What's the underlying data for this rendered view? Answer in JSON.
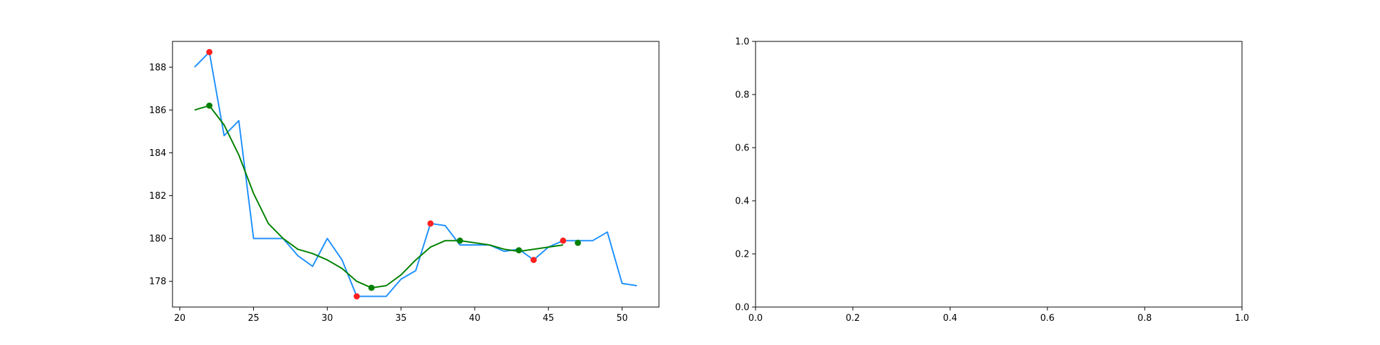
{
  "chart_data": [
    {
      "type": "line",
      "title": "",
      "xlabel": "",
      "ylabel": "",
      "xlim": [
        19.5,
        52.5
      ],
      "ylim": [
        176.8,
        189.2
      ],
      "xticks": [
        20,
        25,
        30,
        35,
        40,
        45,
        50
      ],
      "yticks": [
        178,
        180,
        182,
        184,
        186,
        188
      ],
      "x_tick_labels": [
        "20",
        "25",
        "30",
        "35",
        "40",
        "45",
        "50"
      ],
      "y_tick_labels": [
        "178",
        "180",
        "182",
        "184",
        "186",
        "188"
      ],
      "grid": false,
      "legend": "none",
      "series": [
        {
          "color": "#1e90ff",
          "x": [
            21,
            22,
            23,
            24,
            25,
            26,
            27,
            28,
            29,
            30,
            31,
            32,
            33,
            34,
            35,
            36,
            37,
            38,
            39,
            40,
            41,
            42,
            43,
            44,
            45,
            46,
            47,
            48,
            49,
            50,
            51
          ],
          "y": [
            188.0,
            188.7,
            184.8,
            185.5,
            180.0,
            180.0,
            180.0,
            179.2,
            178.7,
            180.0,
            179.0,
            177.3,
            177.3,
            177.3,
            178.1,
            178.5,
            180.7,
            180.6,
            179.7,
            179.7,
            179.7,
            179.4,
            179.5,
            179.0,
            179.6,
            179.9,
            179.9,
            179.9,
            180.3,
            177.9,
            177.8
          ]
        },
        {
          "color": "#008000",
          "x": [
            21,
            22,
            23,
            24,
            25,
            26,
            27,
            28,
            29,
            30,
            31,
            32,
            33,
            34,
            35,
            36,
            37,
            38,
            39,
            40,
            41,
            42,
            43,
            44,
            45,
            46
          ],
          "y": [
            186.0,
            186.2,
            185.3,
            183.9,
            182.1,
            180.7,
            180.0,
            179.5,
            179.3,
            179.0,
            178.6,
            178.0,
            177.7,
            177.8,
            178.3,
            179.0,
            179.6,
            179.9,
            179.9,
            179.8,
            179.7,
            179.5,
            179.4,
            179.5,
            179.6,
            179.7
          ]
        }
      ],
      "markers": [
        {
          "color": "#ff2020",
          "x": [
            22,
            32,
            37,
            44,
            46
          ],
          "y": [
            188.7,
            177.3,
            180.7,
            179.0,
            179.9
          ]
        },
        {
          "color": "#008000",
          "x": [
            22,
            33,
            39,
            43,
            47
          ],
          "y": [
            186.2,
            177.7,
            179.9,
            179.45,
            179.8
          ]
        }
      ]
    },
    {
      "type": "line",
      "title": "",
      "xlabel": "",
      "ylabel": "",
      "xlim": [
        0.0,
        1.0
      ],
      "ylim": [
        0.0,
        1.0
      ],
      "xticks": [
        0.0,
        0.2,
        0.4,
        0.6,
        0.8,
        1.0
      ],
      "yticks": [
        0.0,
        0.2,
        0.4,
        0.6,
        0.8,
        1.0
      ],
      "x_tick_labels": [
        "0.0",
        "0.2",
        "0.4",
        "0.6",
        "0.8",
        "1.0"
      ],
      "y_tick_labels": [
        "0.0",
        "0.2",
        "0.4",
        "0.6",
        "0.8",
        "1.0"
      ],
      "grid": false,
      "legend": "none",
      "series": [],
      "markers": []
    }
  ]
}
